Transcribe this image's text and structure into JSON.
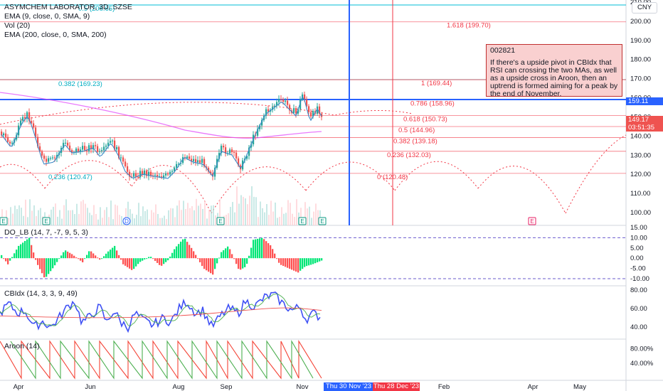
{
  "symbol_title": "ASYMCHEM LABORATOR, 3D, SZSE",
  "indicators": {
    "ema9": "EMA (9, close, 0, SMA, 9)",
    "vol": "Vol (20)",
    "ema200": "EMA (200, close, 0, SMA, 200)"
  },
  "currency": "CNY",
  "note": {
    "title": "002821",
    "body": "If there's a upside pivot in CBIdx that RSI can crossing the two MAs, as well as a upside cross in Aroon, then an uptrend is formed aiming for a peak by the end of November."
  },
  "fib_levels": [
    {
      "label": "1.618 (199.70)",
      "price": 199.7,
      "color": "#f23645"
    },
    {
      "label": "1 (169.44)",
      "price": 169.44,
      "color": "#f23645"
    },
    {
      "label": "0.786 (158.96)",
      "price": 158.96,
      "color": "#f23645"
    },
    {
      "label": "0.618 (150.73)",
      "price": 150.73,
      "color": "#f23645"
    },
    {
      "label": "0.5 (144.96)",
      "price": 144.96,
      "color": "#f23645"
    },
    {
      "label": "0.382 (139.18)",
      "price": 139.18,
      "color": "#f23645"
    },
    {
      "label": "0.236 (132.03)",
      "price": 132.03,
      "color": "#f23645"
    },
    {
      "label": "0 (120.48)",
      "price": 120.48,
      "color": "#f23645"
    }
  ],
  "fib_levels_left": [
    {
      "label": "0.382 (169.23)",
      "price": 169.23
    },
    {
      "label": "0.236 (120.47)",
      "price": 120.47
    },
    {
      "label": "0.5 (208.65)",
      "price": 208.65
    }
  ],
  "price_axis": [
    "210.00",
    "200.00",
    "190.00",
    "180.00",
    "170.00",
    "160.00",
    "150.00",
    "140.00",
    "130.00",
    "120.00",
    "110.00",
    "100.00"
  ],
  "price_tags": {
    "horizontal_line": "159.11",
    "last_price": "149.17",
    "countdown": "03:51:35"
  },
  "do_lb": {
    "label": "DO_LB (14, 7, -7, 9, 5, 3)",
    "axis": [
      "15.00",
      "10.00",
      "5.00",
      "0.00",
      "-5.00",
      "-10.00"
    ]
  },
  "cbidx": {
    "label": "CBIdx (14, 3, 3, 9, 49)",
    "axis": [
      "80.00",
      "60.00",
      "40.00"
    ]
  },
  "aroon": {
    "label": "Aroon (14)",
    "axis": [
      "80.00%",
      "40.00%"
    ]
  },
  "time_axis": [
    "Apr",
    "Jun",
    "Aug",
    "Sep",
    "Nov",
    "Feb",
    "Apr",
    "May"
  ],
  "date_tags": {
    "blue": "Thu 30 Nov '23",
    "red": "Thu 28 Dec '23"
  },
  "event_markers": [
    "E",
    "E",
    "D",
    "E",
    "E",
    "E",
    "E"
  ],
  "colors": {
    "up": "#26a69a",
    "down": "#ef5350",
    "fib": "#f23645",
    "blue_line": "#2962ff",
    "ema200": "#e040fb",
    "ema9": "#3a88c7"
  }
}
